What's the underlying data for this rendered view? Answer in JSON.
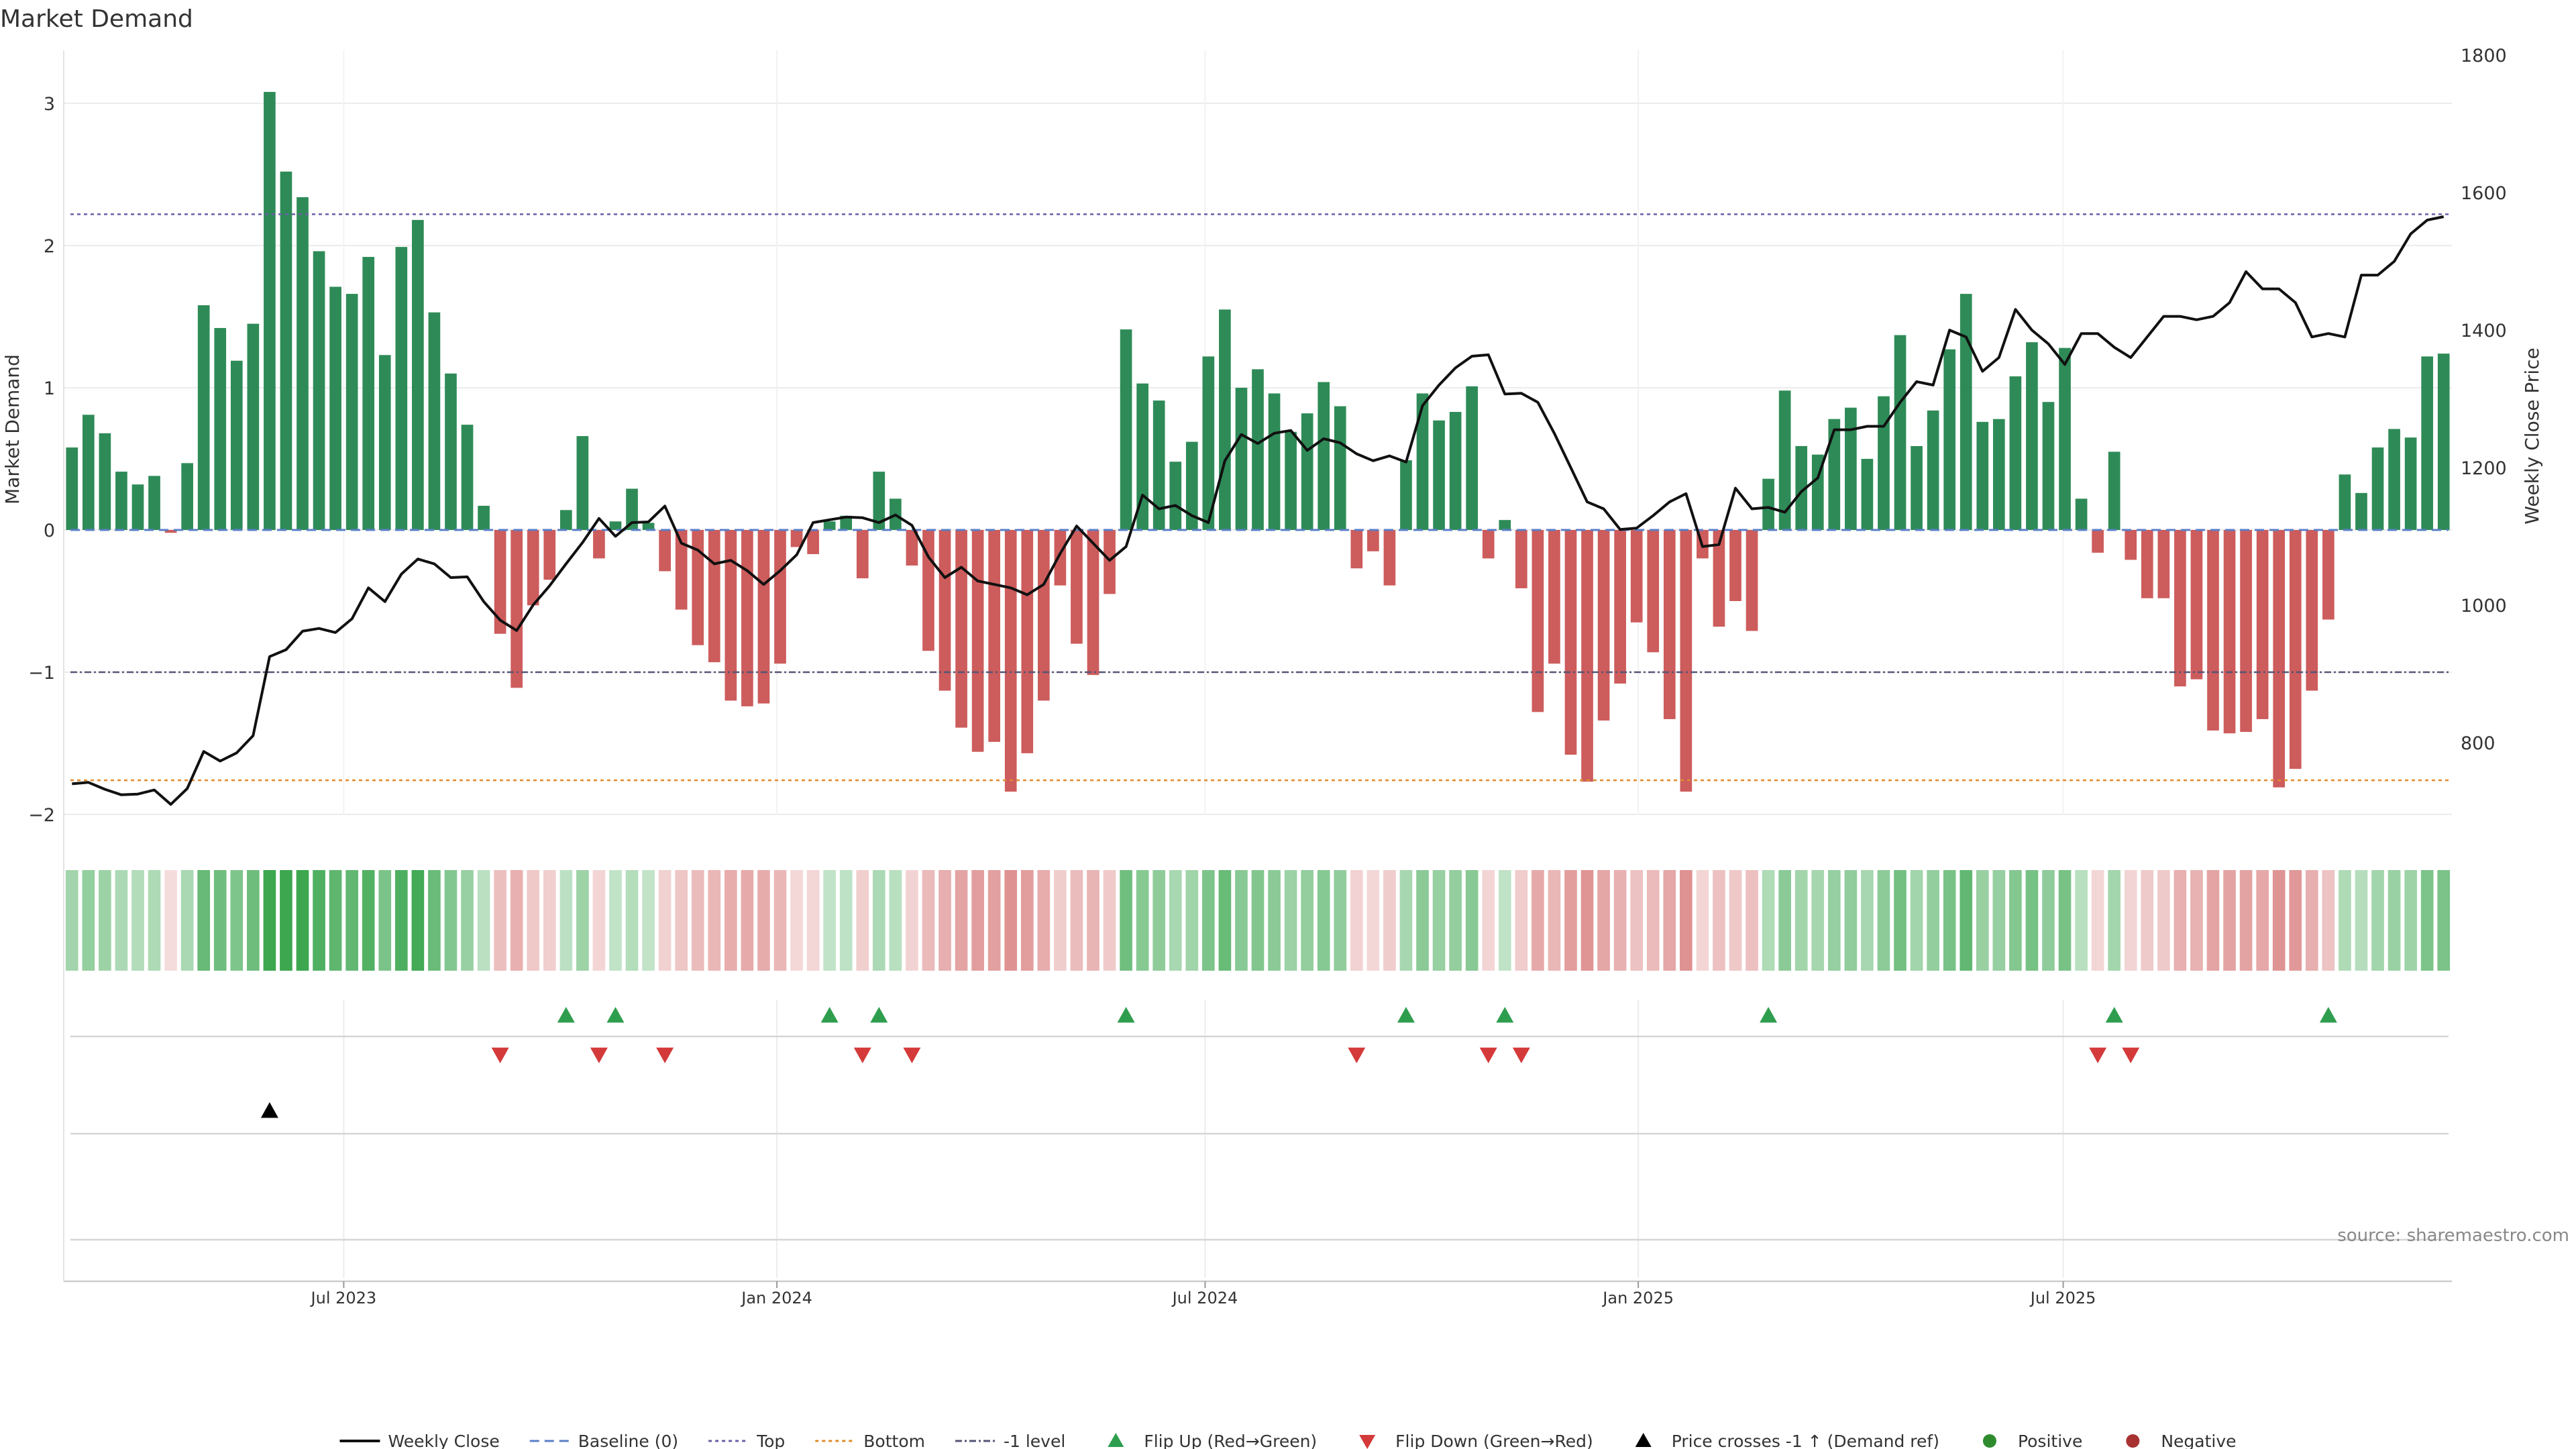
{
  "chart_data": {
    "type": "bar",
    "title": "Market Demand",
    "ylabel": "Market Demand",
    "y2label": "Weekly Close Price",
    "ylim": [
      -2.35,
      3.35
    ],
    "y2lim": [
      700,
      1810
    ],
    "yticks": [
      -2,
      -1,
      0,
      1,
      2,
      3
    ],
    "y2ticks": [
      800,
      1000,
      1200,
      1400,
      1600,
      1800
    ],
    "reference_lines": {
      "top": 2.22,
      "bottom": -1.76,
      "minus_one": -1.0,
      "baseline": 0
    },
    "x_start": "2023-03-06",
    "week_count": 144,
    "x_ticks": [
      {
        "label": "Jul 2023",
        "week": 17
      },
      {
        "label": "Jan 2024",
        "week": 43.3
      },
      {
        "label": "Jul 2024",
        "week": 69.3
      },
      {
        "label": "Jan 2025",
        "week": 95.6
      },
      {
        "label": "Jul 2025",
        "week": 121.4
      }
    ],
    "series": [
      {
        "name": "Market Demand",
        "values": [
          0.58,
          0.81,
          0.68,
          0.41,
          0.32,
          0.38,
          -0.02,
          0.47,
          1.58,
          1.42,
          1.19,
          1.45,
          3.08,
          2.52,
          2.34,
          1.96,
          1.71,
          1.66,
          1.92,
          1.23,
          1.99,
          2.18,
          1.53,
          1.1,
          0.74,
          0.17,
          -0.73,
          -1.11,
          -0.53,
          -0.35,
          0.14,
          0.66,
          -0.2,
          0.06,
          0.29,
          0.05,
          -0.29,
          -0.56,
          -0.81,
          -0.93,
          -1.2,
          -1.24,
          -1.22,
          -0.94,
          -0.12,
          -0.17,
          0.06,
          0.1,
          -0.34,
          0.41,
          0.22,
          -0.25,
          -0.85,
          -1.13,
          -1.39,
          -1.56,
          -1.49,
          -1.84,
          -1.57,
          -1.2,
          -0.39,
          -0.8,
          -1.02,
          -0.45,
          1.41,
          1.03,
          0.91,
          0.48,
          0.62,
          1.22,
          1.55,
          1.0,
          1.13,
          0.96,
          0.69,
          0.82,
          1.04,
          0.87,
          -0.27,
          -0.15,
          -0.39,
          0.49,
          0.96,
          0.77,
          0.83,
          1.01,
          -0.2,
          0.07,
          -0.41,
          -1.28,
          -0.94,
          -1.58,
          -1.77,
          -1.34,
          -1.08,
          -0.65,
          -0.86,
          -1.33,
          -1.84,
          -0.2,
          -0.68,
          -0.5,
          -0.71,
          0.36,
          0.98,
          0.59,
          0.53,
          0.78,
          0.86,
          0.5,
          0.94,
          1.37,
          0.59,
          0.84,
          1.27,
          1.66,
          0.76,
          0.78,
          1.08,
          1.32,
          0.9,
          1.28,
          0.22,
          -0.16,
          0.55,
          -0.21,
          -0.48,
          -0.48,
          -1.1,
          -1.05,
          -1.41,
          -1.43,
          -1.42,
          -1.33,
          -1.81,
          -1.68,
          -1.13,
          -0.63,
          0.39,
          0.26,
          0.58,
          0.71,
          0.65,
          1.22,
          1.24
        ]
      },
      {
        "name": "Weekly Close",
        "axis": "right",
        "values": [
          740,
          742,
          732,
          724,
          725,
          731,
          710,
          733,
          787,
          773,
          785,
          810,
          925,
          935,
          962,
          966,
          960,
          980,
          1025,
          1005,
          1045,
          1067,
          1060,
          1040,
          1041,
          1005,
          978,
          963,
          1000,
          1028,
          1060,
          1091,
          1126,
          1100,
          1120,
          1121,
          1144,
          1090,
          1080,
          1060,
          1065,
          1050,
          1030,
          1050,
          1073,
          1120,
          1124,
          1128,
          1127,
          1120,
          1131,
          1116,
          1070,
          1040,
          1055,
          1035,
          1030,
          1025,
          1015,
          1030,
          1075,
          1115,
          1090,
          1065,
          1085,
          1160,
          1140,
          1145,
          1130,
          1120,
          1210,
          1248,
          1235,
          1250,
          1254,
          1225,
          1242,
          1236,
          1220,
          1210,
          1217,
          1208,
          1290,
          1320,
          1345,
          1362,
          1364,
          1307,
          1308,
          1295,
          1250,
          1200,
          1150,
          1140,
          1110,
          1112,
          1130,
          1150,
          1162,
          1085,
          1088,
          1170,
          1140,
          1142,
          1135,
          1165,
          1185,
          1255,
          1255,
          1260,
          1260,
          1295,
          1325,
          1320,
          1400,
          1390,
          1340,
          1360,
          1430,
          1400,
          1380,
          1350,
          1395,
          1395,
          1375,
          1360,
          1390,
          1420,
          1420,
          1415,
          1420,
          1440,
          1485,
          1460,
          1460,
          1440,
          1390,
          1395,
          1390,
          1480,
          1480,
          1500,
          1540,
          1560,
          1565
        ]
      }
    ],
    "markers": {
      "flip_up": [
        30,
        33,
        46,
        49,
        64,
        81,
        87,
        103,
        124,
        137
      ],
      "flip_down": [
        26,
        32,
        36,
        48,
        51,
        78,
        86,
        88,
        123,
        125
      ],
      "price_cross": [
        12
      ]
    },
    "legend": [
      {
        "label": "Weekly Close",
        "kind": "line",
        "color": "#111111"
      },
      {
        "label": "Baseline (0)",
        "kind": "dash",
        "color": "#5b7fc7"
      },
      {
        "label": "Top",
        "kind": "dot",
        "color": "#6a5fa8"
      },
      {
        "label": "Bottom",
        "kind": "dot",
        "color": "#e08b2a"
      },
      {
        "label": "-1 level",
        "kind": "dashdot",
        "color": "#555577"
      },
      {
        "label": "Flip Up (Red→Green)",
        "kind": "tri-up",
        "color": "#2e9e4e"
      },
      {
        "label": "Flip Down (Green→Red)",
        "kind": "tri-down",
        "color": "#d43a3a"
      },
      {
        "label": "Price crosses -1 ↑ (Demand ref)",
        "kind": "tri-up",
        "color": "#000000"
      },
      {
        "label": "Positive",
        "kind": "dot-circle",
        "color": "#2e8b2e"
      },
      {
        "label": "Negative",
        "kind": "dot-circle",
        "color": "#a83232"
      }
    ],
    "legend_position": "bottom-center",
    "source": "source: sharemaestro.com",
    "colors": {
      "positive": "#2e8b57",
      "negative": "#cd5c5c",
      "line": "#111111",
      "grid": "#e8e8e8"
    }
  }
}
